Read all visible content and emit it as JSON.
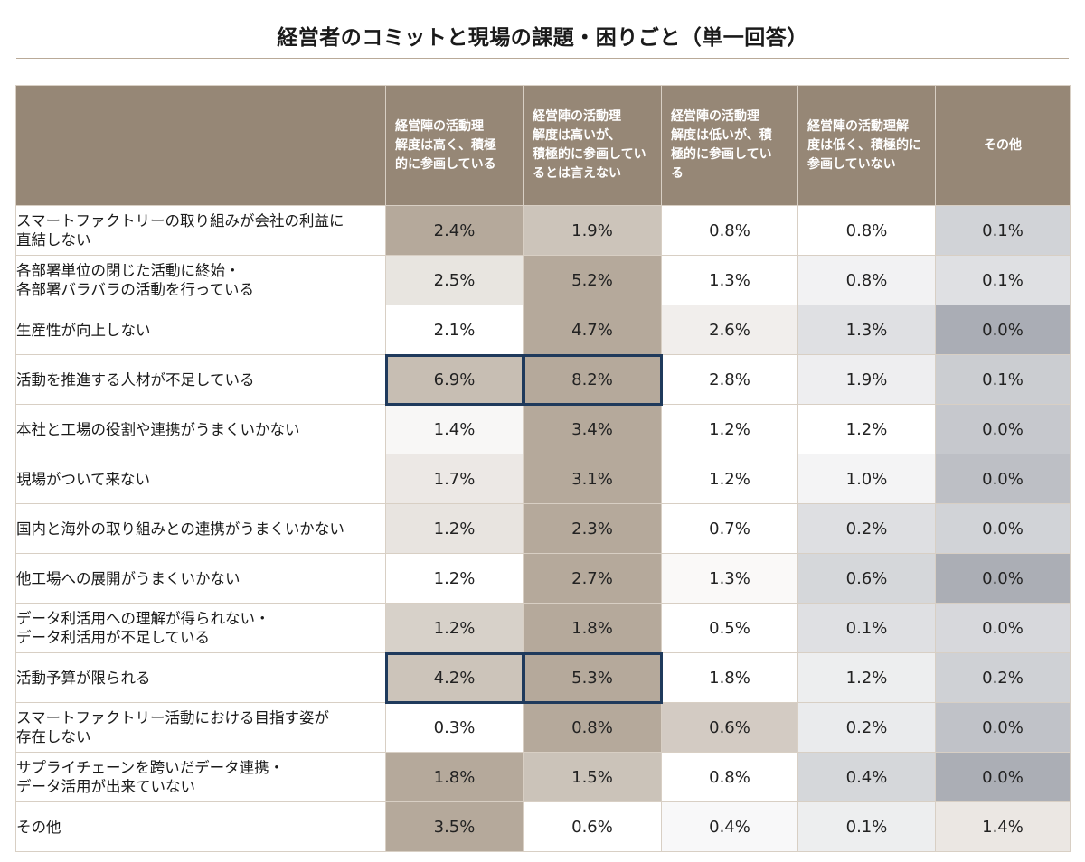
{
  "chart_data": {
    "type": "table",
    "title": "経営者のコミットと現場の課題・困りごと（単一回答）",
    "columns": [
      "経営陣の活動理解度は高く、積極的に参画している",
      "経営陣の活動理解度は高いが、積極的に参画しているとは言えない",
      "経営陣の活動理解度は低いが、積極的に参画している",
      "経営陣の活動理解度は低く、積極的に参画していない",
      "その他"
    ],
    "column_lines": [
      [
        "経営陣の活動理",
        "解度は高く、積極",
        "的に参画している"
      ],
      [
        "経営陣の活動理",
        "解度は高いが、",
        "積極的に参画してい",
        "るとは言えない"
      ],
      [
        "経営陣の活動理",
        "解度は低いが、積",
        "極的に参画してい",
        "る"
      ],
      [
        "経営陣の活動理解",
        "度は低く、積極的に",
        "参画していない"
      ],
      [
        "その他"
      ]
    ],
    "rows": [
      {
        "label": "スマートファクトリーの取り組みが会社の利益に直結しない",
        "lines": [
          "スマートファクトリーの取り組みが会社の利益に",
          "直結しない"
        ],
        "values": [
          2.4,
          1.9,
          0.8,
          0.8,
          0.1
        ]
      },
      {
        "label": "各部署単位の閉じた活動に終始・各部署バラバラの活動を行っている",
        "lines": [
          "各部署単位の閉じた活動に終始・",
          "各部署バラバラの活動を行っている"
        ],
        "values": [
          2.5,
          5.2,
          1.3,
          0.8,
          0.1
        ]
      },
      {
        "label": "生産性が向上しない",
        "lines": [
          "生産性が向上しない"
        ],
        "values": [
          2.1,
          4.7,
          2.6,
          1.3,
          0.0
        ]
      },
      {
        "label": "活動を推進する人材が不足している",
        "lines": [
          "活動を推進する人材が不足している"
        ],
        "values": [
          6.9,
          8.2,
          2.8,
          1.9,
          0.1
        ]
      },
      {
        "label": "本社と工場の役割や連携がうまくいかない",
        "lines": [
          "本社と工場の役割や連携がうまくいかない"
        ],
        "values": [
          1.4,
          3.4,
          1.2,
          1.2,
          0.0
        ]
      },
      {
        "label": "現場がついて来ない",
        "lines": [
          "現場がついて来ない"
        ],
        "values": [
          1.7,
          3.1,
          1.2,
          1.0,
          0.0
        ]
      },
      {
        "label": "国内と海外の取り組みとの連携がうまくいかない",
        "lines": [
          "国内と海外の取り組みとの連携がうまくいかない"
        ],
        "values": [
          1.2,
          2.3,
          0.7,
          0.2,
          0.0
        ]
      },
      {
        "label": "他工場への展開がうまくいかない",
        "lines": [
          "他工場への展開がうまくいかない"
        ],
        "values": [
          1.2,
          2.7,
          1.3,
          0.6,
          0.0
        ]
      },
      {
        "label": "データ利活用への理解が得られない・データ利活用が不足している",
        "lines": [
          "データ利活用への理解が得られない・",
          "データ利活用が不足している"
        ],
        "values": [
          1.2,
          1.8,
          0.5,
          0.1,
          0.0
        ]
      },
      {
        "label": "活動予算が限られる",
        "lines": [
          "活動予算が限られる"
        ],
        "values": [
          4.2,
          5.3,
          1.8,
          1.2,
          0.2
        ]
      },
      {
        "label": "スマートファクトリー活動における目指す姿が存在しない",
        "lines": [
          "スマートファクトリー活動における目指す姿が",
          "存在しない"
        ],
        "values": [
          0.3,
          0.8,
          0.6,
          0.2,
          0.0
        ]
      },
      {
        "label": "サプライチェーンを跨いだデータ連携・データ活用が出来ていない",
        "lines": [
          "サプライチェーンを跨いだデータ連携・",
          "データ活用が出来ていない"
        ],
        "values": [
          1.8,
          1.5,
          0.8,
          0.4,
          0.0
        ]
      },
      {
        "label": "その他",
        "lines": [
          "その他"
        ],
        "values": [
          3.5,
          0.6,
          0.4,
          0.1,
          1.4
        ]
      }
    ],
    "unit": "%",
    "highlighted_cells": [
      [
        3,
        0
      ],
      [
        3,
        1
      ],
      [
        9,
        0
      ],
      [
        9,
        1
      ]
    ],
    "colors": {
      "header_bg": "#968776",
      "header_text": "#ffffff",
      "high_scale": [
        "#ffffff",
        "#b5a99b"
      ],
      "low_scale": [
        "#ffffff",
        "#969aa3"
      ],
      "highlight_border": "#1f3a5c",
      "title_rule": "#b9aa98"
    }
  }
}
